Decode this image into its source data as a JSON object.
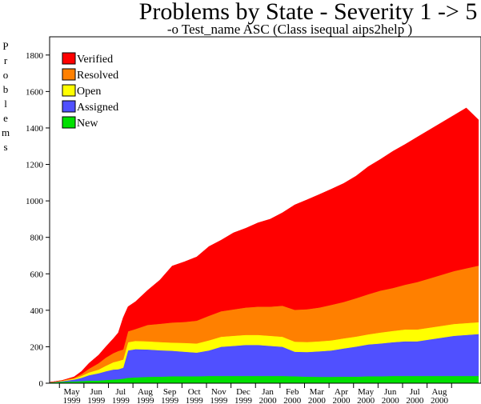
{
  "chart_data": {
    "type": "area",
    "stacked": true,
    "title": "Problems by State  - Severity 1 -> 5",
    "subtitle": "-o Test_name ASC (Class isequal aips2help )",
    "ylabel": "Problems",
    "xlabel": "",
    "ylim": [
      0,
      1900
    ],
    "yticks": [
      0,
      200,
      400,
      600,
      800,
      1000,
      1200,
      1400,
      1600,
      1800
    ],
    "xlim": [
      0,
      17.6
    ],
    "month_labels": [
      {
        "month": "May",
        "year": "1999"
      },
      {
        "month": "Jun",
        "year": "1999"
      },
      {
        "month": "Jul",
        "year": "1999"
      },
      {
        "month": "Aug",
        "year": "1999"
      },
      {
        "month": "Sep",
        "year": "1999"
      },
      {
        "month": "Oct",
        "year": "1999"
      },
      {
        "month": "Nov",
        "year": "1999"
      },
      {
        "month": "Dec",
        "year": "1999"
      },
      {
        "month": "Jan",
        "year": "2000"
      },
      {
        "month": "Feb",
        "year": "2000"
      },
      {
        "month": "Mar",
        "year": "2000"
      },
      {
        "month": "Apr",
        "year": "2000"
      },
      {
        "month": "May",
        "year": "2000"
      },
      {
        "month": "Jun",
        "year": "2000"
      },
      {
        "month": "Jul",
        "year": "2000"
      },
      {
        "month": "Aug",
        "year": "2000"
      }
    ],
    "x": [
      0,
      0.5,
      1.0,
      1.3,
      1.6,
      2.0,
      2.3,
      2.6,
      2.8,
      3.0,
      3.2,
      3.5,
      4.0,
      4.5,
      5.0,
      5.5,
      6.0,
      6.5,
      7.0,
      7.5,
      8.0,
      8.5,
      9.0,
      9.5,
      10.0,
      10.5,
      11.0,
      11.5,
      12.0,
      12.5,
      13.0,
      13.5,
      14.0,
      14.5,
      15.0,
      15.5,
      16.0,
      16.5,
      17.0,
      17.5
    ],
    "series": [
      {
        "name": "New",
        "color": "#00e000",
        "values": [
          5,
          8,
          10,
          12,
          14,
          15,
          18,
          20,
          22,
          25,
          30,
          32,
          35,
          36,
          38,
          38,
          38,
          40,
          40,
          40,
          40,
          40,
          40,
          40,
          38,
          36,
          35,
          35,
          36,
          36,
          38,
          38,
          40,
          40,
          40,
          40,
          40,
          40,
          40,
          40
        ]
      },
      {
        "name": "Assigned",
        "color": "#5050ff",
        "values": [
          0,
          3,
          10,
          18,
          30,
          40,
          48,
          55,
          55,
          60,
          150,
          155,
          150,
          145,
          140,
          135,
          130,
          140,
          160,
          165,
          170,
          170,
          165,
          160,
          135,
          135,
          140,
          145,
          155,
          165,
          175,
          180,
          185,
          190,
          190,
          200,
          210,
          220,
          225,
          230
        ]
      },
      {
        "name": "Open",
        "color": "#ffff00",
        "values": [
          0,
          2,
          5,
          10,
          15,
          20,
          30,
          40,
          45,
          45,
          45,
          45,
          45,
          45,
          45,
          48,
          50,
          55,
          55,
          55,
          55,
          55,
          55,
          55,
          55,
          55,
          55,
          55,
          55,
          55,
          55,
          60,
          62,
          65,
          65,
          65,
          65,
          65,
          65,
          65
        ]
      },
      {
        "name": "Resolved",
        "color": "#ff8000",
        "values": [
          0,
          2,
          5,
          10,
          20,
          35,
          45,
          50,
          55,
          55,
          60,
          65,
          90,
          100,
          110,
          115,
          125,
          135,
          140,
          145,
          150,
          155,
          160,
          170,
          175,
          180,
          185,
          195,
          200,
          210,
          220,
          230,
          235,
          245,
          260,
          270,
          280,
          290,
          300,
          310
        ]
      },
      {
        "name": "Verified",
        "color": "#ff0000",
        "values": [
          0,
          0,
          5,
          15,
          30,
          45,
          60,
          80,
          100,
          175,
          135,
          150,
          190,
          240,
          310,
          330,
          350,
          380,
          390,
          420,
          435,
          460,
          480,
          510,
          575,
          600,
          620,
          635,
          650,
          670,
          700,
          720,
          750,
          770,
          795,
          815,
          835,
          855,
          880,
          800
        ]
      }
    ],
    "legend_position": "top-left",
    "grid": false
  }
}
